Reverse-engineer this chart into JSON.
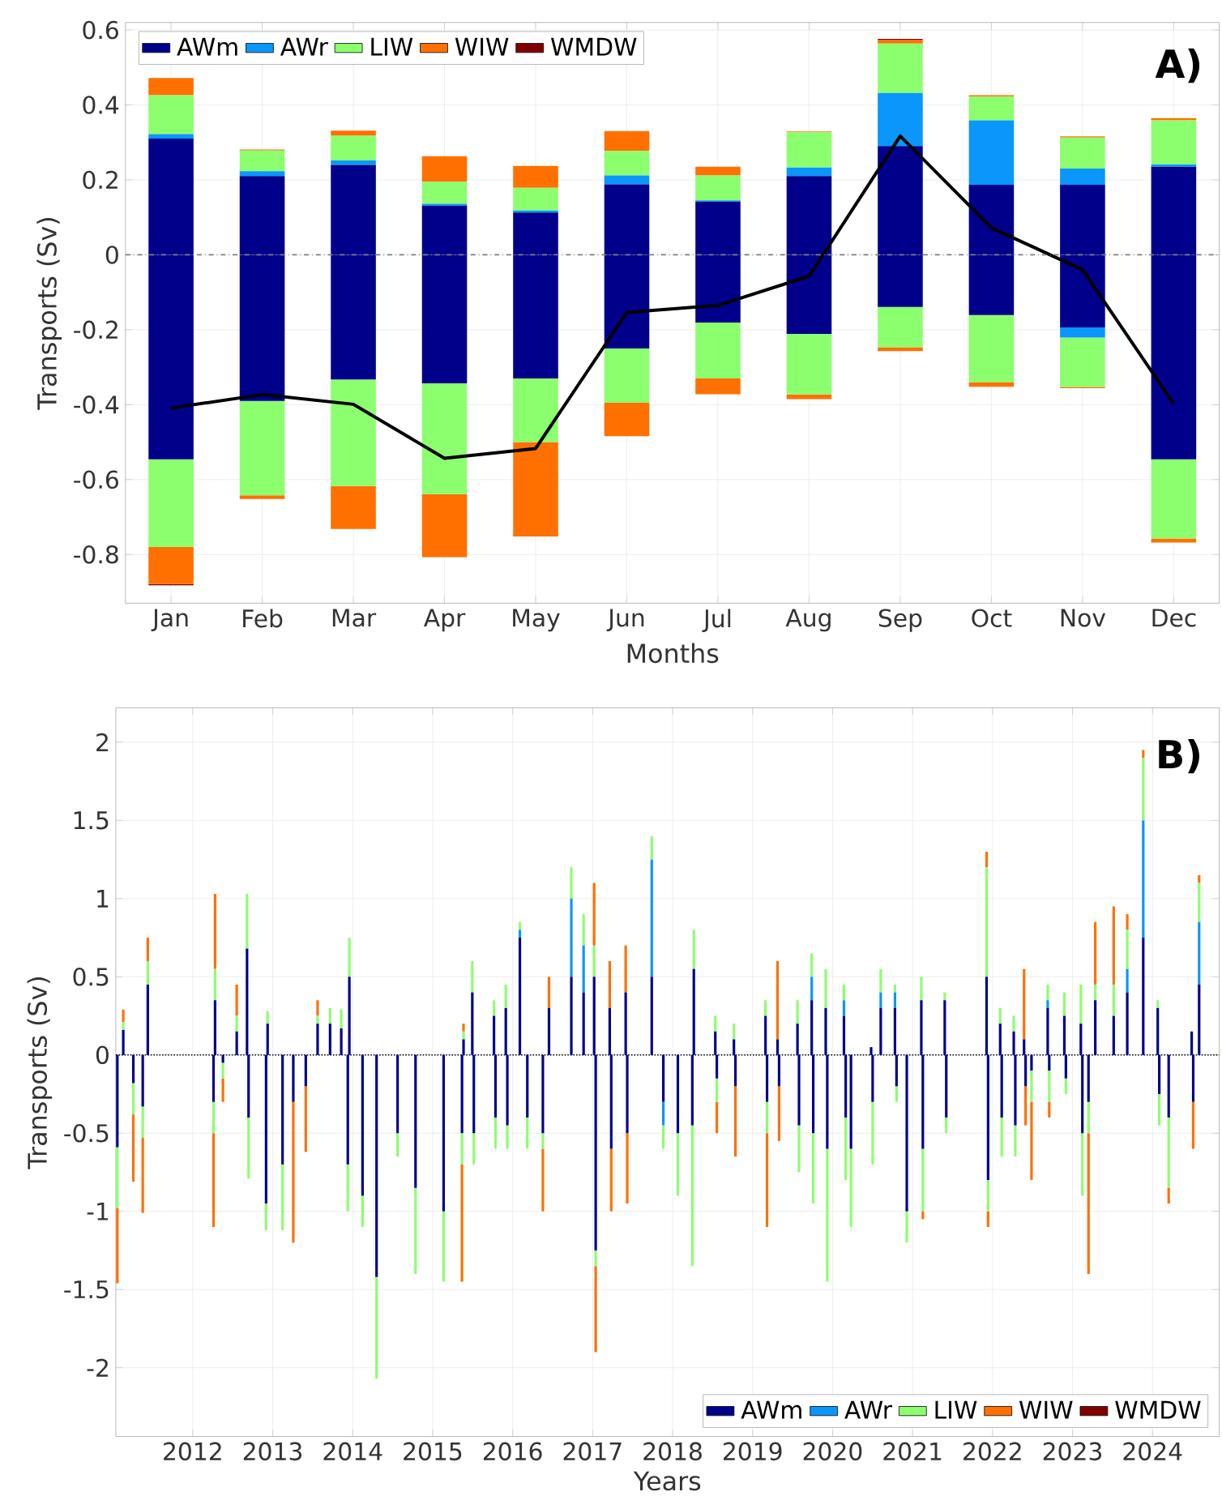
{
  "chart_data": [
    {
      "type": "bar",
      "stacked": true,
      "xlabel": "Months",
      "ylabel": "Transports (Sv)",
      "annotations": [
        "A)"
      ],
      "categories": [
        "Jan",
        "Feb",
        "Mar",
        "Apr",
        "May",
        "Jun",
        "Jul",
        "Aug",
        "Sep",
        "Oct",
        "Nov",
        "Dec"
      ],
      "ylim": [
        -0.93,
        0.62
      ],
      "yticks": [
        -0.8,
        -0.6,
        -0.4,
        -0.2,
        0,
        0.2,
        0.4,
        0.6
      ],
      "grid": true,
      "legend": "top left",
      "ref_lines": [
        {
          "axis": "y",
          "value": 0,
          "color": "#808080",
          "line_style": "dashed"
        }
      ],
      "series": [
        {
          "name": "AWm",
          "color": "#00008b",
          "values": [
            0.31,
            0.21,
            0.24,
            0.131,
            0.113,
            0.188,
            0.142,
            0.21,
            0.29,
            0.187,
            0.187,
            0.235
          ]
        },
        {
          "name": "AWr",
          "color": "#0a96fa",
          "values": [
            0.012,
            0.013,
            0.012,
            0.005,
            0.005,
            0.024,
            0.003,
            0.023,
            0.142,
            0.172,
            0.043,
            0.006
          ]
        },
        {
          "name": "LIW",
          "color": "#8cff6e",
          "values": [
            0.104,
            0.055,
            0.066,
            0.059,
            0.061,
            0.065,
            0.067,
            0.094,
            0.132,
            0.063,
            0.083,
            0.118
          ]
        },
        {
          "name": "WIW",
          "color": "#ff7000",
          "values": [
            0.046,
            0.003,
            0.013,
            0.068,
            0.058,
            0.053,
            0.023,
            0.002,
            0.009,
            0.004,
            0.003,
            0.006
          ]
        },
        {
          "name": "WMDW",
          "color": "#800000",
          "values": [
            0,
            0,
            0,
            0,
            0,
            0,
            0,
            0,
            0.003,
            0,
            0,
            0
          ]
        },
        {
          "color": "#00008b",
          "values": [
            -0.546,
            -0.39,
            -0.333,
            -0.343,
            -0.33,
            -0.25,
            -0.181,
            -0.211,
            -0.139,
            -0.161,
            -0.194,
            -0.546
          ]
        },
        {
          "color": "#0a96fa",
          "values": [
            0,
            0,
            0,
            0,
            0,
            0,
            0,
            0,
            0,
            0,
            -0.027,
            0
          ]
        },
        {
          "color": "#8cff6e",
          "values": [
            -0.234,
            -0.252,
            -0.284,
            -0.296,
            -0.17,
            -0.145,
            -0.149,
            -0.162,
            -0.108,
            -0.179,
            -0.132,
            -0.211
          ]
        },
        {
          "color": "#ff7000",
          "values": [
            -0.099,
            -0.01,
            -0.115,
            -0.168,
            -0.252,
            -0.089,
            -0.042,
            -0.012,
            -0.01,
            -0.012,
            -0.003,
            -0.011
          ]
        },
        {
          "color": "#800000",
          "values": [
            -0.003,
            0,
            0,
            0,
            0,
            0,
            0,
            0,
            0,
            0,
            0,
            0
          ]
        },
        {
          "type": "line",
          "color": "#000000",
          "line_style": "solid",
          "values": [
            -0.409,
            -0.373,
            -0.399,
            -0.543,
            -0.517,
            -0.154,
            -0.135,
            -0.057,
            0.317,
            0.072,
            -0.04,
            -0.398
          ]
        }
      ]
    },
    {
      "type": "bar",
      "stacked": true,
      "xlabel": "Years",
      "ylabel": "Transports (Sv)",
      "annotations": [
        "B)"
      ],
      "xlim": [
        "2011-01-15",
        "2024-11-01"
      ],
      "xticks": [
        "2012",
        "2013",
        "2014",
        "2015",
        "2016",
        "2017",
        "2018",
        "2019",
        "2020",
        "2021",
        "2022",
        "2023",
        "2024"
      ],
      "ylim": [
        -2.44,
        2.22
      ],
      "yticks": [
        -2,
        -1.5,
        -1,
        -0.5,
        0,
        0.5,
        1,
        1.5,
        2
      ],
      "grid": true,
      "legend": "bottom right",
      "ref_lines": [
        {
          "axis": "y",
          "value": 0,
          "color": "#000000",
          "line_style": "dotted"
        }
      ],
      "x": [
        "2011-01-22",
        "2011-02-18",
        "2011-04-05",
        "2011-05-18",
        "2011-06-10",
        "2012-04-05",
        "2012-04-12",
        "2012-05-18",
        "2012-07-20",
        "2012-09-05",
        "2012-09-12",
        "2012-12-01",
        "2012-12-08",
        "2013-02-15",
        "2013-04-05",
        "2013-06-01",
        "2013-07-25",
        "2013-09-20",
        "2013-11-10",
        "2013-12-10",
        "2013-12-17",
        "2014-02-15",
        "2014-04-20",
        "2014-07-25",
        "2014-10-15",
        "2015-02-20",
        "2015-05-15",
        "2015-05-22",
        "2015-07-01",
        "2015-07-08",
        "2015-10-08",
        "2015-10-15",
        "2015-12-01",
        "2015-12-08",
        "2016-02-03",
        "2016-03-08",
        "2016-05-18",
        "2016-06-15",
        "2016-09-25",
        "2016-11-20",
        "2017-01-08",
        "2017-01-15",
        "2017-03-20",
        "2017-03-27",
        "2017-06-01",
        "2017-06-08",
        "2017-09-28",
        "2017-11-20",
        "2018-01-25",
        "2018-04-01",
        "2018-04-08",
        "2018-07-15",
        "2018-07-22",
        "2018-10-08",
        "2018-10-15",
        "2019-03-01",
        "2019-03-08",
        "2019-04-25",
        "2019-05-02",
        "2019-07-25",
        "2019-08-01",
        "2019-09-28",
        "2019-10-05",
        "2019-12-01",
        "2019-12-08",
        "2020-02-22",
        "2020-03-01",
        "2020-03-25",
        "2020-06-25",
        "2020-07-02",
        "2020-08-08",
        "2020-10-12",
        "2020-10-19",
        "2020-12-05",
        "2021-02-10",
        "2021-02-17",
        "2021-05-28",
        "2021-06-04",
        "2021-12-05",
        "2021-12-12",
        "2022-02-05",
        "2022-02-12",
        "2022-04-08",
        "2022-04-15",
        "2022-05-25",
        "2022-06-01",
        "2022-06-28",
        "2022-09-10",
        "2022-09-17",
        "2022-11-25",
        "2022-12-02",
        "2023-02-08",
        "2023-02-15",
        "2023-03-15",
        "2023-04-15",
        "2023-07-08",
        "2023-09-08",
        "2023-11-20",
        "2024-01-25",
        "2024-02-01",
        "2024-03-15",
        "2024-06-28",
        "2024-07-05",
        "2024-08-01"
      ],
      "series": [
        {
          "name": "AWm",
          "color": "#00008b",
          "values": [
            -0.59,
            0.16,
            -0.18,
            -0.33,
            0.45,
            -0.3,
            0.35,
            -0.05,
            0.15,
            0.68,
            -0.4,
            -0.95,
            0.2,
            -0.7,
            -0.3,
            -0.2,
            0.2,
            0.2,
            0.17,
            -0.7,
            0.5,
            -0.9,
            -1.42,
            -0.5,
            -0.85,
            -1.0,
            -0.5,
            0.1,
            0.4,
            -0.5,
            0.25,
            -0.4,
            0.3,
            -0.45,
            0.75,
            -0.4,
            -0.5,
            0.3,
            0.5,
            0.4,
            0.5,
            -1.25,
            0.3,
            -0.6,
            0.4,
            -0.5,
            0.5,
            -0.3,
            -0.5,
            -0.45,
            0.55,
            0.15,
            -0.15,
            0.1,
            -0.2,
            0.25,
            -0.3,
            0.1,
            -0.2,
            0.2,
            -0.45,
            0.35,
            -0.5,
            0.3,
            -0.6,
            0.25,
            -0.4,
            -0.6,
            0.05,
            -0.3,
            0.3,
            0.3,
            -0.2,
            -1.0,
            0.35,
            -0.6,
            0.35,
            -0.4,
            0.5,
            -0.8,
            0.2,
            -0.4,
            0.15,
            -0.45,
            0.1,
            -0.2,
            -0.1,
            0.3,
            -0.1,
            0.25,
            -0.15,
            0.2,
            -0.5,
            -0.3,
            0.35,
            0.25,
            0.4,
            0.75,
            0.3,
            -0.25,
            -0.4,
            0.15,
            -0.3,
            0.45
          ]
        },
        {
          "name": "AWr",
          "color": "#0a96fa",
          "values": [
            0,
            0,
            0,
            0,
            0,
            0,
            0,
            0,
            0,
            0,
            0,
            0,
            0,
            0,
            0,
            0,
            0,
            0,
            0,
            0,
            0,
            0,
            0,
            0,
            0,
            0,
            0,
            0,
            0,
            0,
            0,
            0,
            0,
            0,
            0.05,
            0,
            0,
            0,
            0.5,
            0.3,
            0,
            0,
            0,
            0,
            0,
            0,
            0.75,
            -0.15,
            0,
            0,
            0,
            0,
            0,
            0,
            0,
            0,
            0,
            0,
            0,
            0,
            0,
            0.15,
            0,
            0,
            0,
            0.1,
            0,
            0,
            0,
            0,
            0.1,
            0.1,
            0,
            0,
            0,
            0,
            0,
            0,
            0,
            0,
            0,
            0,
            0,
            0,
            0,
            0,
            0,
            0.05,
            0,
            0,
            0,
            0,
            0,
            0,
            0,
            0,
            0.15,
            0.75,
            0,
            0,
            0,
            0,
            0,
            0.4
          ]
        },
        {
          "name": "LIW",
          "color": "#8cff6e",
          "values": [
            -0.39,
            0.05,
            -0.2,
            -0.2,
            0.15,
            -0.2,
            0.2,
            -0.1,
            0.1,
            0.35,
            -0.39,
            -0.17,
            0.08,
            -0.42,
            0,
            0,
            0.05,
            0.1,
            0.12,
            -0.3,
            0.25,
            -0.2,
            -0.65,
            -0.15,
            -0.55,
            -0.45,
            -0.2,
            0.05,
            0.2,
            -0.2,
            0.1,
            -0.2,
            0.15,
            -0.15,
            0.05,
            -0.2,
            -0.1,
            0,
            0.2,
            0.2,
            0.2,
            -0.1,
            0,
            0,
            0,
            0,
            0.15,
            -0.15,
            -0.4,
            -0.9,
            0.25,
            0.1,
            -0.15,
            0.1,
            0,
            0.1,
            -0.2,
            0,
            0,
            0.15,
            -0.3,
            0.15,
            -0.45,
            0.25,
            -0.85,
            0.1,
            -0.4,
            -0.5,
            0,
            -0.4,
            0.15,
            0.05,
            -0.1,
            -0.2,
            0.15,
            -0.4,
            0.05,
            -0.1,
            0.7,
            -0.2,
            0.1,
            -0.25,
            0.1,
            -0.2,
            0,
            0,
            -0.2,
            0.1,
            -0.2,
            0.15,
            -0.1,
            0.25,
            -0.4,
            -0.2,
            0.1,
            0.2,
            0.25,
            0.4,
            0.05,
            -0.2,
            -0.45,
            0,
            0,
            0.25
          ]
        },
        {
          "name": "WIW",
          "color": "#ff7000",
          "values": [
            -0.48,
            0.08,
            -0.43,
            -0.48,
            0.15,
            -0.6,
            0.48,
            -0.15,
            0.2,
            0,
            0,
            0,
            0,
            0,
            -0.9,
            -0.42,
            0.1,
            0,
            0,
            0,
            0,
            0,
            0,
            0,
            0,
            0,
            -0.75,
            0.05,
            0,
            0,
            0,
            0,
            0,
            0,
            0,
            0,
            -0.4,
            0.2,
            0,
            0,
            0.4,
            -0.55,
            0.3,
            -0.4,
            0.3,
            -0.45,
            0,
            0,
            0,
            0,
            0,
            0,
            -0.2,
            0,
            -0.45,
            0,
            -0.6,
            0.5,
            -0.35,
            0,
            0,
            0,
            0,
            0,
            0,
            0,
            0,
            0,
            0,
            0,
            0,
            0,
            0,
            0,
            0,
            -0.05,
            0,
            0,
            0.1,
            -0.1,
            0,
            0,
            0,
            0,
            0.45,
            -0.25,
            -0.5,
            0,
            -0.1,
            0,
            0,
            0,
            0,
            -0.9,
            0.4,
            0.5,
            0.1,
            0.05,
            0,
            0,
            -0.1,
            0,
            -0.3,
            0.05
          ]
        },
        {
          "name": "WMDW",
          "color": "#800000",
          "values": [
            0,
            0,
            0,
            0,
            0,
            0,
            0,
            0,
            0,
            0,
            0,
            0,
            0,
            0,
            0,
            0,
            0,
            0,
            0,
            0,
            0,
            0,
            0,
            0,
            0,
            0,
            0,
            0,
            0,
            0,
            0,
            0,
            0,
            0,
            0,
            0,
            0,
            0,
            0,
            0,
            0,
            0,
            0,
            0,
            0,
            0,
            0,
            0,
            0,
            0,
            0,
            0,
            0,
            0,
            0,
            0,
            0,
            0,
            0,
            0,
            0,
            0,
            0,
            0,
            0,
            0,
            0,
            0,
            0,
            0,
            0,
            0,
            0,
            0,
            0,
            0,
            0,
            0,
            0,
            0,
            0,
            0,
            0,
            0,
            0,
            0,
            0,
            0,
            0,
            0,
            0,
            0,
            0,
            0,
            0,
            0,
            0,
            0,
            0,
            0,
            0,
            0,
            0,
            0
          ]
        }
      ]
    }
  ]
}
